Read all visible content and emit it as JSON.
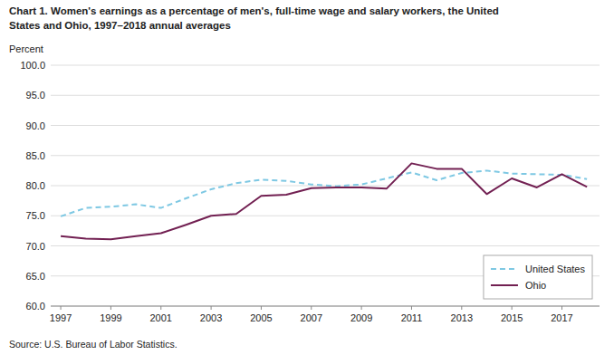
{
  "chart_data": {
    "type": "line",
    "title": "Chart 1. Women's earnings as a percentage of men's, full-time wage and salary workers, the United",
    "subtitle": "States and Ohio, 1997–2018  annual averages",
    "y_label": "Percent",
    "source": "Source:  U.S. Bureau of Labor Statistics.",
    "x": [
      1997,
      1998,
      1999,
      2000,
      2001,
      2002,
      2003,
      2004,
      2005,
      2006,
      2007,
      2008,
      2009,
      2010,
      2011,
      2012,
      2013,
      2014,
      2015,
      2016,
      2017,
      2018
    ],
    "series": [
      {
        "name": "United States",
        "color": "#7EC8E3",
        "line_style": "dashed",
        "values": [
          74.9,
          76.3,
          76.5,
          76.9,
          76.3,
          77.9,
          79.4,
          80.4,
          81.0,
          80.8,
          80.2,
          79.9,
          80.2,
          81.2,
          82.2,
          80.9,
          82.1,
          82.5,
          82.0,
          81.9,
          81.8,
          81.1
        ]
      },
      {
        "name": "Ohio",
        "color": "#722052",
        "line_style": "solid",
        "values": [
          71.6,
          71.2,
          71.1,
          71.6,
          72.1,
          73.5,
          75.0,
          75.3,
          78.3,
          78.5,
          79.6,
          79.7,
          79.7,
          79.5,
          83.7,
          82.8,
          82.8,
          78.6,
          81.2,
          79.7,
          81.9,
          79.8
        ]
      }
    ],
    "xlim": [
      1996.6,
      2018.5
    ],
    "xticks": [
      1997,
      1999,
      2001,
      2003,
      2005,
      2007,
      2009,
      2011,
      2013,
      2015,
      2017
    ],
    "ylim": [
      60.0,
      100.0
    ],
    "yticks": [
      {
        "value": 60.0,
        "label": "60.0"
      },
      {
        "value": 65.0,
        "label": "65.0"
      },
      {
        "value": 70.0,
        "label": "70.0"
      },
      {
        "value": 75.0,
        "label": "75.0"
      },
      {
        "value": 80.0,
        "label": "80.0"
      },
      {
        "value": 85.0,
        "label": "85.0"
      },
      {
        "value": 90.0,
        "label": "90.0"
      },
      {
        "value": 95.0,
        "label": "95.0"
      },
      {
        "value": 100.0,
        "label": "100.0"
      }
    ],
    "grid": true,
    "legend": "lower right"
  }
}
